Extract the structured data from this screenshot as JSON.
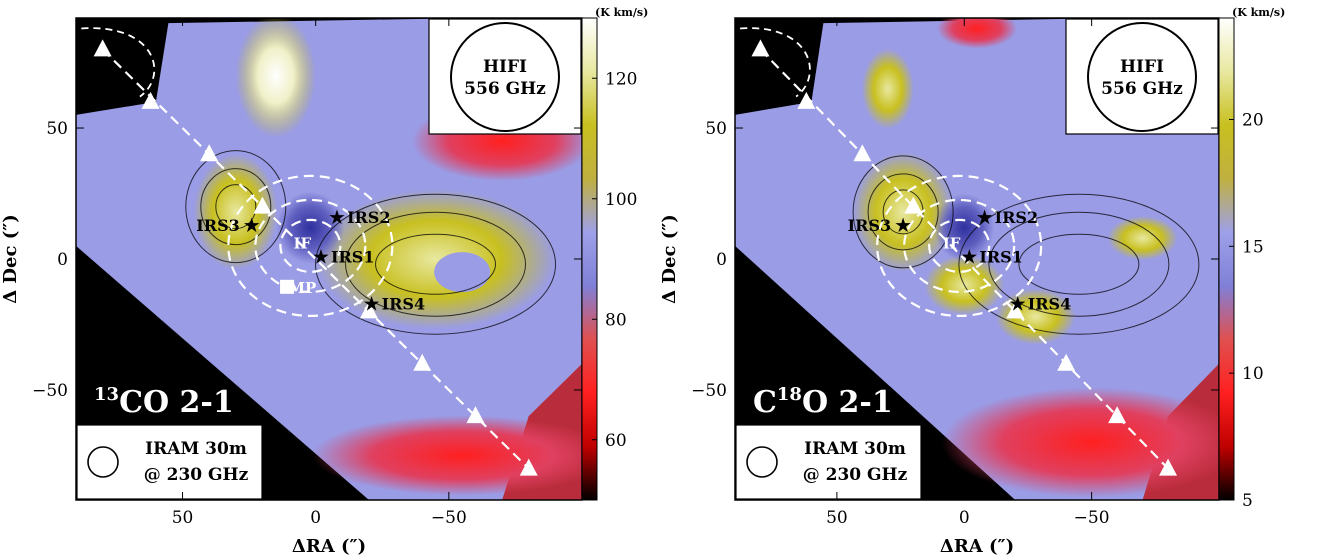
{
  "colorbar_colors": [
    "#000000",
    "#c00000",
    "#ff2020",
    "#e05050",
    "#8080d8",
    "#9ea0e8",
    "#c0b040",
    "#c8c020",
    "#e8e8a0",
    "#ffffff"
  ],
  "chart_data": [
    {
      "type": "heatmap",
      "panel_label_main": "13",
      "panel_label_rest": "CO 2-1",
      "xlabel": "ΔRA (″)",
      "ylabel": "Δ Dec (″)",
      "xlim": [
        90,
        -100
      ],
      "ylim": [
        -92,
        92
      ],
      "x_ticks": [
        50,
        0,
        -50
      ],
      "x_tick_labels": [
        "50",
        "0",
        "−50"
      ],
      "y_ticks": [
        50,
        0,
        -50
      ],
      "y_tick_labels": [
        "50",
        "0",
        "−50"
      ],
      "colorbar_unit": "(K km/s)",
      "colorbar_range": [
        50,
        130
      ],
      "colorbar_ticks": [
        60,
        80,
        100,
        120
      ],
      "beam_top": [
        "HIFI",
        "556 GHz"
      ],
      "beam_bottom": [
        "IRAM 30m",
        "@ 230 GHz"
      ],
      "sources": [
        {
          "name": "IRS1",
          "x": -2,
          "y": 1
        },
        {
          "name": "IRS2",
          "x": -8,
          "y": 16
        },
        {
          "name": "IRS3",
          "x": 24,
          "y": 13
        },
        {
          "name": "IRS4",
          "x": -21,
          "y": -17
        }
      ],
      "white_labels": [
        {
          "text": "IF",
          "x": 5,
          "y": 4
        },
        {
          "text": "MP",
          "x": 5,
          "y": -13
        }
      ],
      "cut_points": [
        {
          "x": 80,
          "y": 80
        },
        {
          "x": 62,
          "y": 60
        },
        {
          "x": 40,
          "y": 40
        },
        {
          "x": 20,
          "y": 20
        },
        {
          "x": -20,
          "y": -20
        },
        {
          "x": -40,
          "y": -40
        },
        {
          "x": -60,
          "y": -60
        },
        {
          "x": -80,
          "y": -80
        }
      ]
    },
    {
      "type": "heatmap",
      "panel_label_main": "C",
      "panel_label_sup": "18",
      "panel_label_rest": "O 2-1",
      "xlabel": "ΔRA (″)",
      "ylabel": "Δ Dec (″)",
      "xlim": [
        90,
        -100
      ],
      "ylim": [
        -92,
        92
      ],
      "x_ticks": [
        50,
        0,
        -50
      ],
      "x_tick_labels": [
        "50",
        "0",
        "−50"
      ],
      "y_ticks": [
        50,
        0,
        -50
      ],
      "y_tick_labels": [
        "50",
        "0",
        "−50"
      ],
      "colorbar_unit": "(K km/s)",
      "colorbar_range": [
        5,
        24
      ],
      "colorbar_ticks": [
        5,
        10,
        15,
        20
      ],
      "beam_top": [
        "HIFI",
        "556 GHz"
      ],
      "beam_bottom": [
        "IRAM 30m",
        "@ 230 GHz"
      ],
      "sources": [
        {
          "name": "IRS1",
          "x": -2,
          "y": 1
        },
        {
          "name": "IRS2",
          "x": -8,
          "y": 16
        },
        {
          "name": "IRS3",
          "x": 24,
          "y": 13
        },
        {
          "name": "IRS4",
          "x": -21,
          "y": -17
        }
      ],
      "white_labels": [
        {
          "text": "IF",
          "x": 5,
          "y": 4
        }
      ],
      "cut_points": [
        {
          "x": 80,
          "y": 80
        },
        {
          "x": 62,
          "y": 60
        },
        {
          "x": 40,
          "y": 40
        },
        {
          "x": 20,
          "y": 20
        },
        {
          "x": -20,
          "y": -20
        },
        {
          "x": -40,
          "y": -40
        },
        {
          "x": -60,
          "y": -60
        },
        {
          "x": -80,
          "y": -80
        }
      ]
    }
  ]
}
